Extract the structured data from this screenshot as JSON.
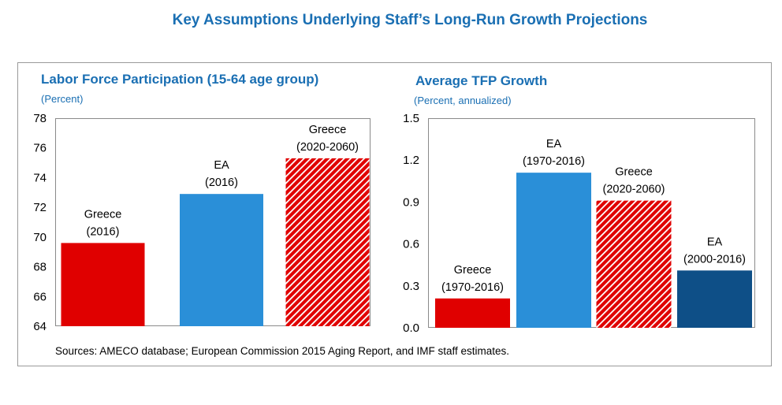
{
  "title": "Key Assumptions Underlying Staff’s Long-Run Growth Projections",
  "sources": "Sources: AMECO database; European Commission 2015 Aging Report, and IMF staff estimates.",
  "colors": {
    "title_blue": "#1a6fb3",
    "greece_red": "#e00000",
    "ea_blue": "#2a8fd8",
    "ea_dark_blue": "#0e4f87",
    "hatch_stripe": "#ffffff"
  },
  "chart_data": [
    {
      "type": "bar",
      "title": "Labor Force Participation (15-64 age group)",
      "subtitle": "(Percent)",
      "ylim": [
        64,
        78
      ],
      "yticks": [
        "64",
        "66",
        "68",
        "70",
        "72",
        "74",
        "76",
        "78"
      ],
      "grid": false,
      "categories": [
        [
          "Greece",
          "(2016)"
        ],
        [
          "EA",
          "(2016)"
        ],
        [
          "Greece",
          "(2020-2060)"
        ]
      ],
      "values": [
        69.6,
        72.9,
        75.3
      ],
      "bar_styles": [
        "greece-solid",
        "ea-solid",
        "greece-hatched"
      ]
    },
    {
      "type": "bar",
      "title": "Average TFP Growth",
      "subtitle": "(Percent, annualized)",
      "ylim": [
        0,
        1.5
      ],
      "yticks": [
        "0.0",
        "0.3",
        "0.6",
        "0.9",
        "1.2",
        "1.5"
      ],
      "grid": false,
      "categories": [
        [
          "Greece",
          "(1970-2016)"
        ],
        [
          "EA",
          "(1970-2016)"
        ],
        [
          "Greece",
          "(2020-2060)"
        ],
        [
          "EA",
          "(2000-2016)"
        ]
      ],
      "values": [
        0.21,
        1.11,
        0.91,
        0.41
      ],
      "bar_styles": [
        "greece-solid",
        "ea-solid",
        "greece-hatched",
        "ea-dark"
      ]
    }
  ]
}
